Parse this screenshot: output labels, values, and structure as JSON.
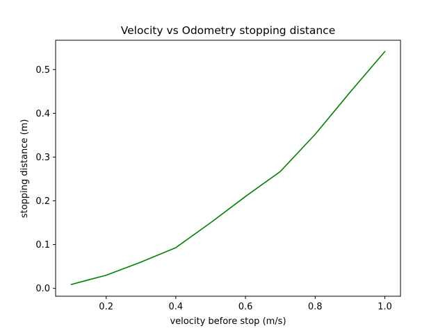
{
  "chart_data": {
    "type": "line",
    "title": "Velocity vs Odometry stopping distance",
    "xlabel": "velocity before stop (m/s)",
    "ylabel": "stopping distance (m)",
    "xlim": [
      0.055,
      1.045
    ],
    "ylim": [
      -0.018,
      0.567
    ],
    "xticks": [
      0.2,
      0.4,
      0.6,
      0.8,
      1.0
    ],
    "xtick_labels": [
      "0.2",
      "0.4",
      "0.6",
      "0.8",
      "1.0"
    ],
    "yticks": [
      0.0,
      0.1,
      0.2,
      0.3,
      0.4,
      0.5
    ],
    "ytick_labels": [
      "0.0",
      "0.1",
      "0.2",
      "0.3",
      "0.4",
      "0.5"
    ],
    "grid": false,
    "series": [
      {
        "color": "#008000",
        "x": [
          0.1,
          0.2,
          0.3,
          0.4,
          0.5,
          0.6,
          0.7,
          0.8,
          0.9,
          1.0
        ],
        "y": [
          0.009,
          0.03,
          0.06,
          0.093,
          0.15,
          0.21,
          0.267,
          0.352,
          0.448,
          0.541
        ]
      }
    ]
  }
}
